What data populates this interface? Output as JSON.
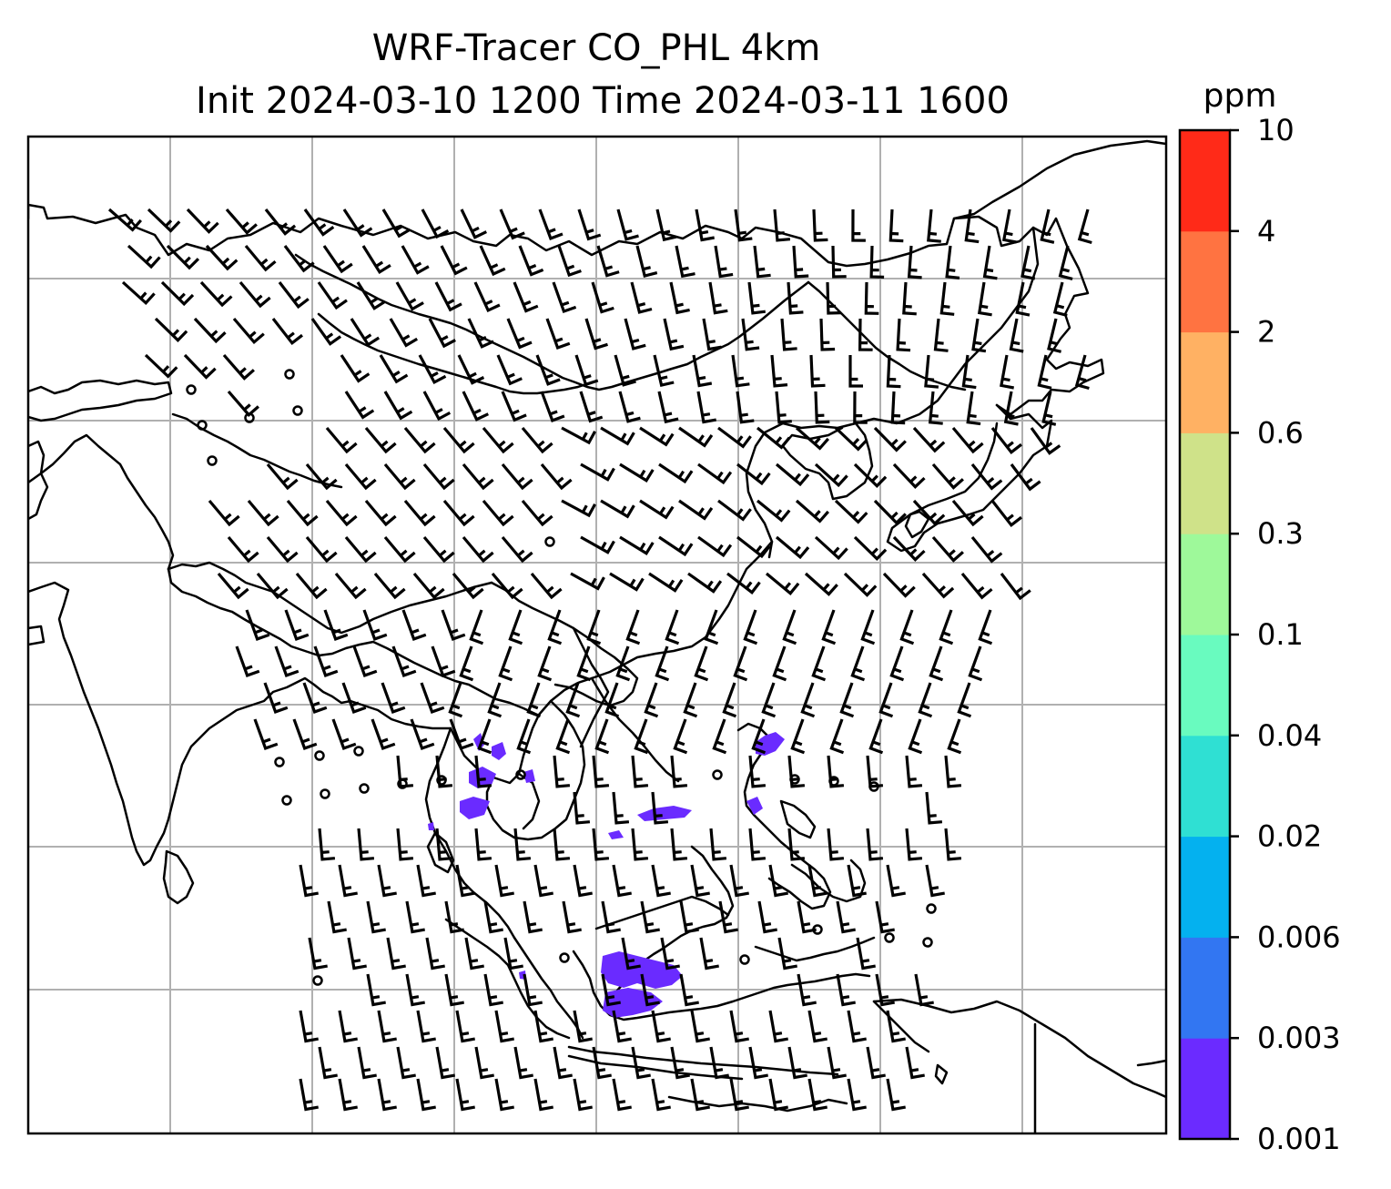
{
  "title_line1": "WRF-Tracer CO_PHL 4km",
  "title_line2": "Init 2024-03-10 1200 Time 2024-03-11 1600",
  "colorbar": {
    "unit": "ppm",
    "levels": [
      "0.001",
      "0.003",
      "0.006",
      "0.02",
      "0.04",
      "0.1",
      "0.3",
      "0.6",
      "2",
      "4",
      "10"
    ],
    "colors": [
      "#6b2bff",
      "#3276f2",
      "#04b1ef",
      "#2fe0d3",
      "#69fbbf",
      "#9ef99a",
      "#cfe289",
      "#ffb163",
      "#ff7341",
      "#ff2a18"
    ]
  },
  "map": {
    "variable": "CO tracer concentration",
    "overlay": "wind barbs",
    "gridlines": true
  }
}
